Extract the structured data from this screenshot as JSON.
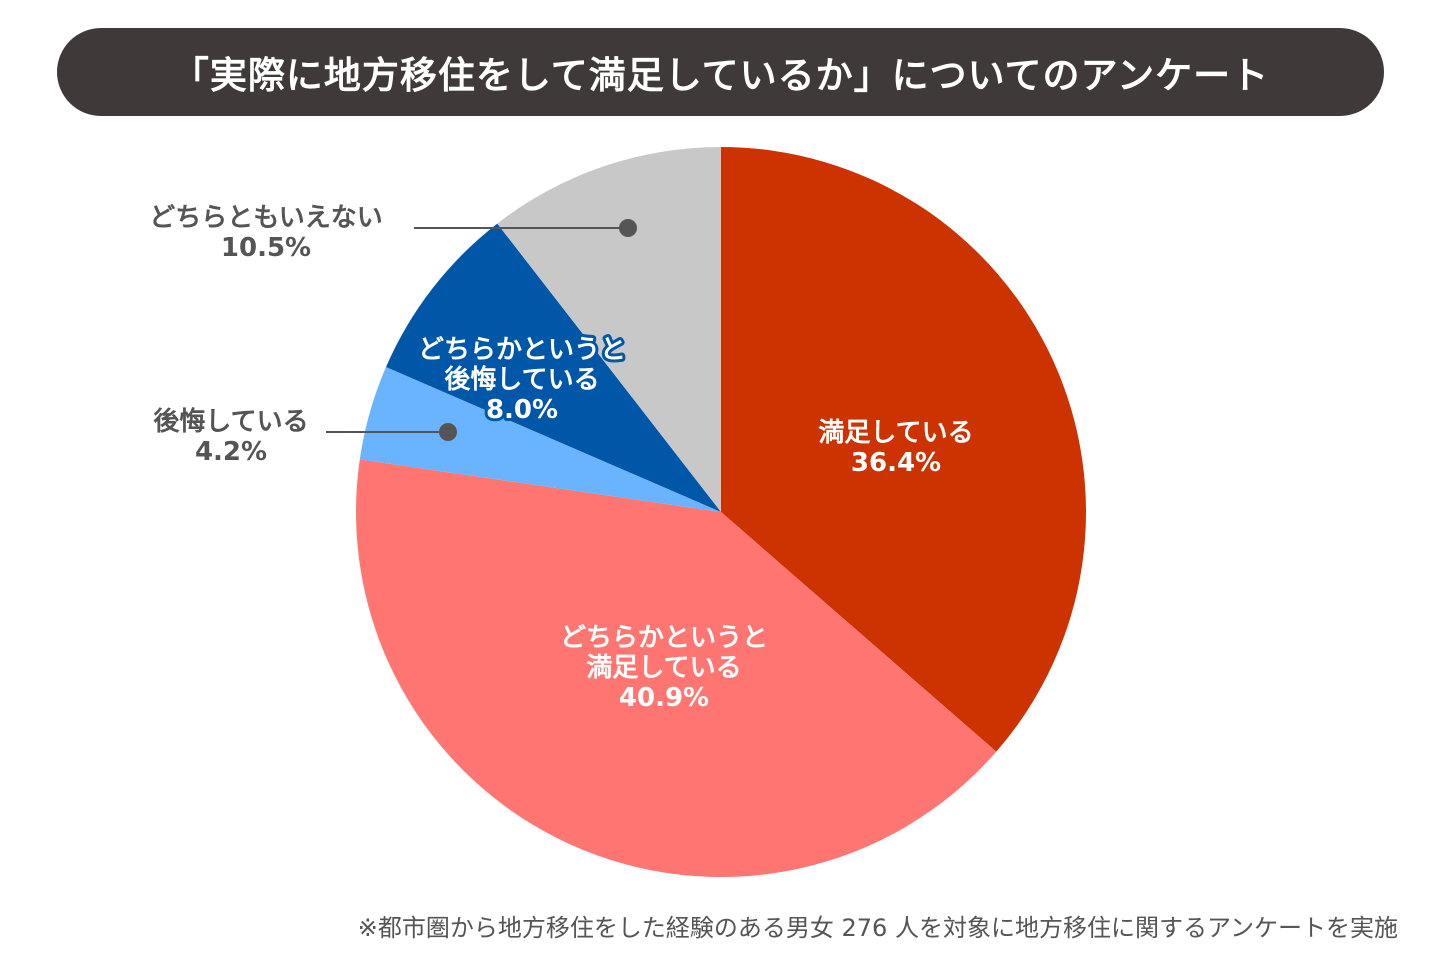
{
  "chart_data": {
    "type": "pie",
    "title": "「実際に地方移住をして満足しているか」についてのアンケート",
    "slices": [
      {
        "label_lines": [
          "満足している"
        ],
        "value_text": "36.4%",
        "value": 36.4,
        "color": "#cc3300",
        "label_position": "inside"
      },
      {
        "label_lines": [
          "どちらかというと",
          "満足している"
        ],
        "value_text": "40.9%",
        "value": 40.9,
        "color": "#ff7571",
        "label_position": "inside"
      },
      {
        "label_lines": [
          "後悔している"
        ],
        "value_text": "4.2%",
        "value": 4.2,
        "color": "#6ab4ff",
        "label_position": "outside"
      },
      {
        "label_lines": [
          "どちらかというと",
          "後悔している"
        ],
        "value_text": "8.0%",
        "value": 8.0,
        "color": "#0057a8",
        "label_position": "inside-outlined"
      },
      {
        "label_lines": [
          "どちらともいえない"
        ],
        "value_text": "10.5%",
        "value": 10.5,
        "color": "#c8c8c8",
        "label_position": "outside"
      }
    ],
    "start_angle_deg": 0,
    "direction": "clockwise",
    "footnote": "※都市圏から地方移住をした経験のある男女 276 人を対象に地方移住に関するアンケートを実施"
  },
  "colors": {
    "banner_bg": "#3f3a39",
    "banner_text": "#ffffff",
    "leader_line": "#555555",
    "outer_label": "#555555",
    "outline_text": "#0057a8"
  }
}
